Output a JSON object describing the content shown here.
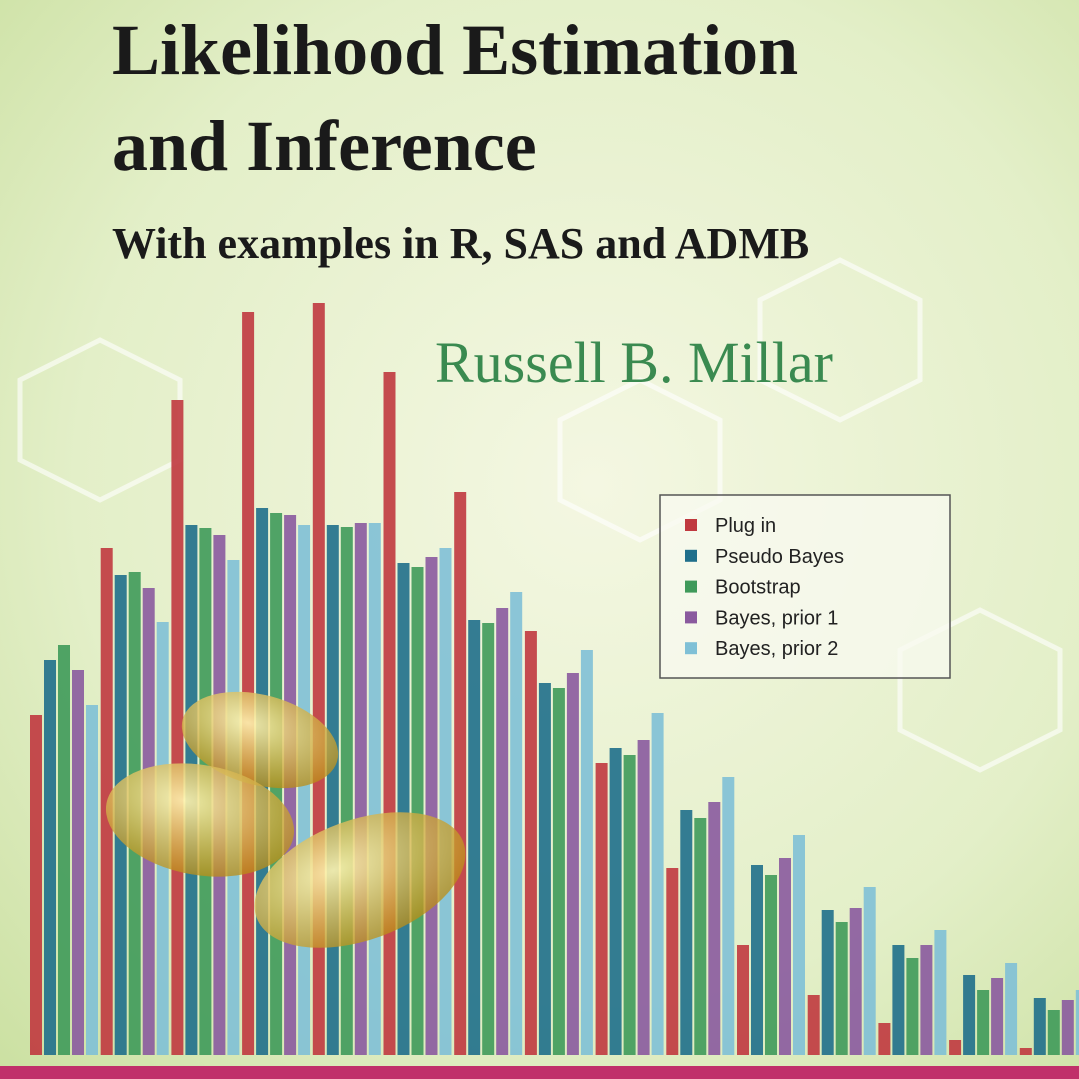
{
  "cover": {
    "title": [
      "Likelihood Estimation",
      "and Inference"
    ],
    "subtitle": "With examples in R, SAS and ADMB",
    "author": "Russell B. Millar"
  },
  "chart_data": {
    "type": "bar",
    "categories": [
      null,
      null,
      null,
      null,
      null,
      null,
      null,
      null,
      null,
      null,
      null,
      null,
      null,
      null,
      null
    ],
    "ylim": [
      0,
      800
    ],
    "series": [
      {
        "name": "Plug in",
        "color": "#c0393f",
        "values": [
          340,
          507,
          655,
          743,
          752,
          683,
          563,
          424,
          292,
          187,
          110,
          60,
          32,
          15,
          7
        ]
      },
      {
        "name": "Pseudo Bayes",
        "color": "#1f6f8b",
        "values": [
          395,
          480,
          530,
          547,
          530,
          492,
          435,
          372,
          307,
          245,
          190,
          145,
          110,
          80,
          57
        ]
      },
      {
        "name": "Bootstrap",
        "color": "#3f9a5a",
        "values": [
          410,
          483,
          527,
          542,
          528,
          488,
          432,
          367,
          300,
          237,
          180,
          133,
          97,
          65,
          45
        ]
      },
      {
        "name": "Bayes, prior 1",
        "color": "#8a5a9e",
        "values": [
          385,
          467,
          520,
          540,
          532,
          498,
          447,
          382,
          315,
          253,
          197,
          147,
          110,
          77,
          55
        ]
      },
      {
        "name": "Bayes, prior 2",
        "color": "#7fc0d6",
        "values": [
          350,
          433,
          495,
          530,
          532,
          507,
          463,
          405,
          342,
          278,
          220,
          168,
          125,
          92,
          65
        ]
      }
    ]
  }
}
